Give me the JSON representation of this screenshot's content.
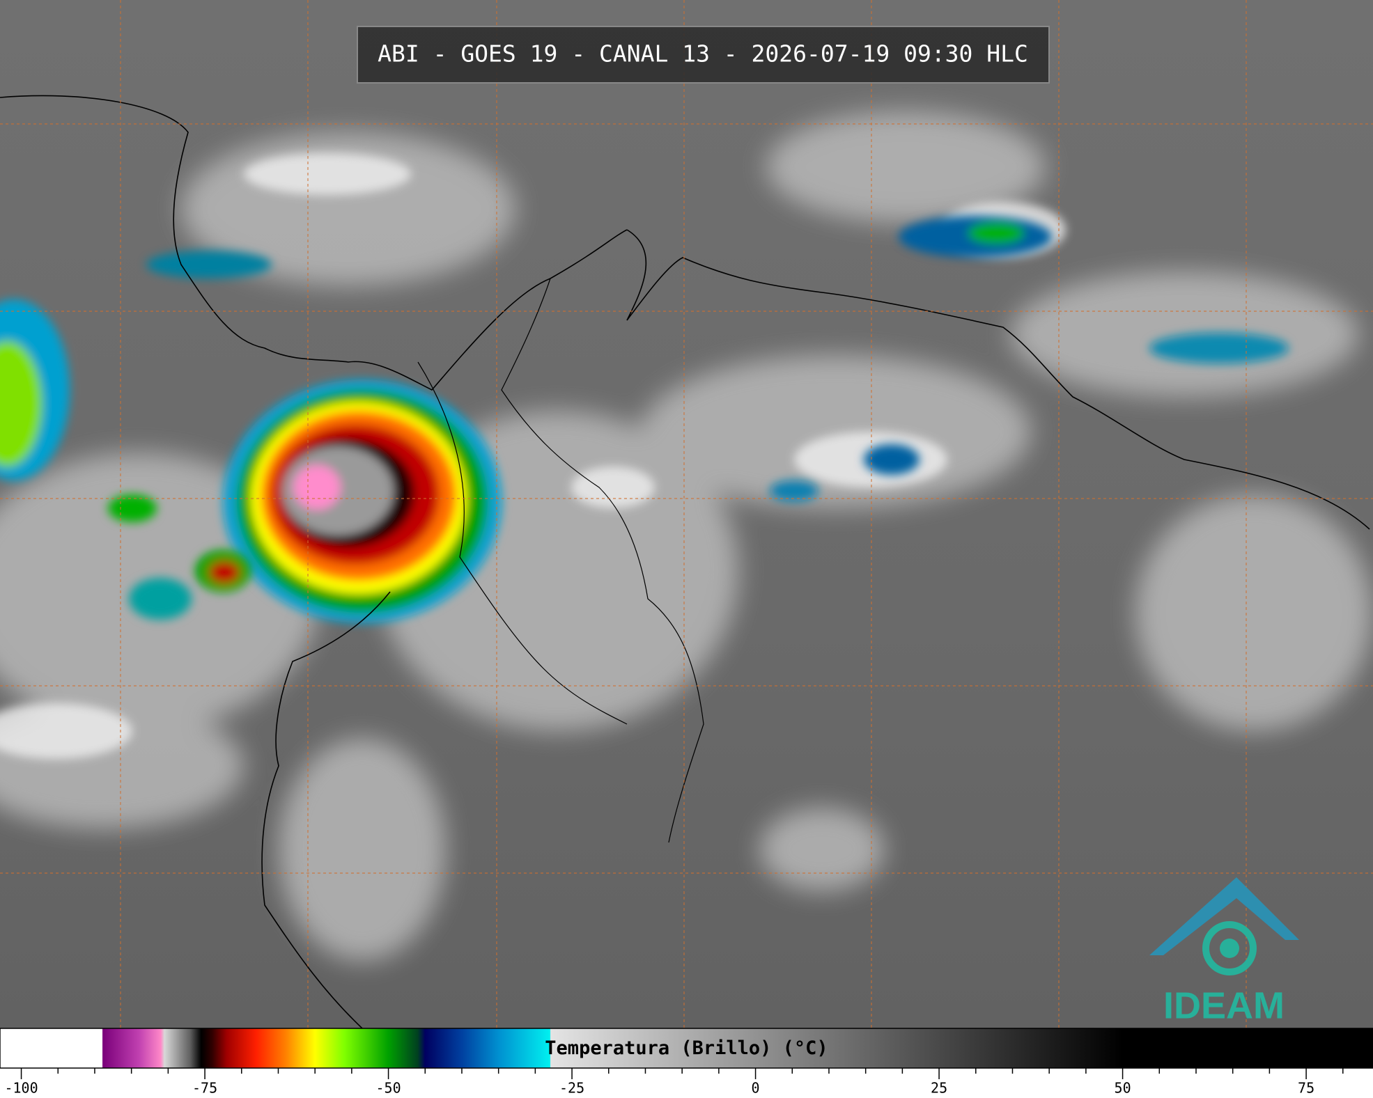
{
  "title": "ABI - GOES 19 - CANAL 13 - 2026-07-19 09:30 HLC",
  "colorbar": {
    "label": "Temperatura (Brillo) (°C)",
    "lim": [
      -102.9,
      84.1
    ],
    "ticks": [
      -100,
      -75,
      -50,
      -25,
      0,
      25,
      50,
      75
    ],
    "minor_ticks": [
      -95,
      -90,
      -85,
      -80,
      -70,
      -65,
      -60,
      -55,
      -45,
      -40,
      -35,
      -30,
      -20,
      -15,
      -10,
      -5,
      5,
      10,
      15,
      20,
      30,
      35,
      40,
      45,
      55,
      60,
      65,
      70,
      80
    ],
    "stops": [
      {
        "value": -102.9,
        "color": "#ffffff"
      },
      {
        "value": -89,
        "color": "#ffffff"
      },
      {
        "value": -88.9,
        "color": "#7a007a"
      },
      {
        "value": -84,
        "color": "#c040b0"
      },
      {
        "value": -81,
        "color": "#ff88c8"
      },
      {
        "value": -80.5,
        "color": "#d8d8d8"
      },
      {
        "value": -77,
        "color": "#606060"
      },
      {
        "value": -75.5,
        "color": "#000000"
      },
      {
        "value": -74,
        "color": "#300000"
      },
      {
        "value": -72,
        "color": "#a00000"
      },
      {
        "value": -68,
        "color": "#ff2000"
      },
      {
        "value": -64,
        "color": "#ff8000"
      },
      {
        "value": -60,
        "color": "#ffff00"
      },
      {
        "value": -56,
        "color": "#80ff00"
      },
      {
        "value": -50,
        "color": "#00a000"
      },
      {
        "value": -46,
        "color": "#004020"
      },
      {
        "value": -45,
        "color": "#000060"
      },
      {
        "value": -40,
        "color": "#0040a0"
      },
      {
        "value": -35,
        "color": "#0090d0"
      },
      {
        "value": -28,
        "color": "#00f0f0"
      },
      {
        "value": -27.9,
        "color": "#e4e4e4"
      },
      {
        "value": 50,
        "color": "#000000"
      },
      {
        "value": 84.1,
        "color": "#000000"
      }
    ]
  },
  "logo": {
    "text": "IDEAM"
  }
}
